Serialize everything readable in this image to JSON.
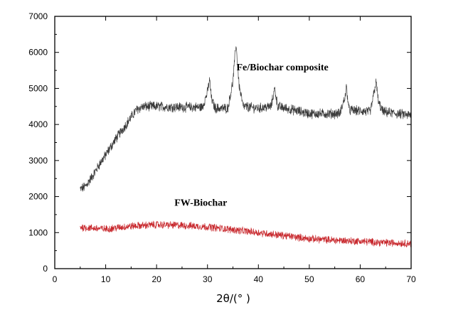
{
  "chart_data": {
    "type": "line",
    "xlabel": "2θ/(° )",
    "ylabel": "",
    "xlim": [
      0,
      70
    ],
    "ylim": [
      0,
      7000
    ],
    "x_ticks": [
      0,
      10,
      20,
      30,
      40,
      50,
      60,
      70
    ],
    "y_ticks": [
      0,
      1000,
      2000,
      3000,
      4000,
      5000,
      6000,
      7000
    ],
    "grid": false,
    "legend": "none",
    "x_range_data": [
      5,
      70
    ],
    "series": [
      {
        "name": "Fe/Biochar composite",
        "color": "#3a3a3a",
        "noise": 120,
        "points": [
          [
            5,
            2200
          ],
          [
            6,
            2280
          ],
          [
            7,
            2480
          ],
          [
            8,
            2700
          ],
          [
            9,
            2950
          ],
          [
            10,
            3150
          ],
          [
            11,
            3380
          ],
          [
            12,
            3600
          ],
          [
            13,
            3800
          ],
          [
            14,
            4000
          ],
          [
            15,
            4200
          ],
          [
            16,
            4400
          ],
          [
            17,
            4480
          ],
          [
            18,
            4500
          ],
          [
            20,
            4500
          ],
          [
            25,
            4480
          ],
          [
            29,
            4480
          ],
          [
            30,
            4900
          ],
          [
            30.4,
            5250
          ],
          [
            30.8,
            4700
          ],
          [
            31.5,
            4450
          ],
          [
            34,
            4450
          ],
          [
            35,
            5200
          ],
          [
            35.6,
            6250
          ],
          [
            36.2,
            5100
          ],
          [
            37,
            4500
          ],
          [
            40,
            4450
          ],
          [
            42.5,
            4500
          ],
          [
            43.2,
            5000
          ],
          [
            43.8,
            4500
          ],
          [
            50,
            4300
          ],
          [
            56,
            4300
          ],
          [
            57,
            4750
          ],
          [
            57.3,
            5050
          ],
          [
            57.8,
            4400
          ],
          [
            62,
            4350
          ],
          [
            62.8,
            4950
          ],
          [
            63.1,
            5200
          ],
          [
            63.6,
            4600
          ],
          [
            64.5,
            4350
          ],
          [
            70,
            4250
          ]
        ]
      },
      {
        "name": "FW-Biochar",
        "color": "#c8282d",
        "noise": 90,
        "points": [
          [
            5,
            1150
          ],
          [
            10,
            1100
          ],
          [
            15,
            1180
          ],
          [
            20,
            1220
          ],
          [
            25,
            1200
          ],
          [
            30,
            1160
          ],
          [
            35,
            1080
          ],
          [
            40,
            1000
          ],
          [
            45,
            920
          ],
          [
            50,
            830
          ],
          [
            55,
            790
          ],
          [
            60,
            760
          ],
          [
            65,
            720
          ],
          [
            70,
            700
          ]
        ]
      }
    ],
    "annotations": [
      {
        "text": "Fe/Biochar composite",
        "x": 35.7,
        "y": 5500
      },
      {
        "text": "FW-Biochar",
        "x": 23.5,
        "y": 1750
      }
    ]
  }
}
